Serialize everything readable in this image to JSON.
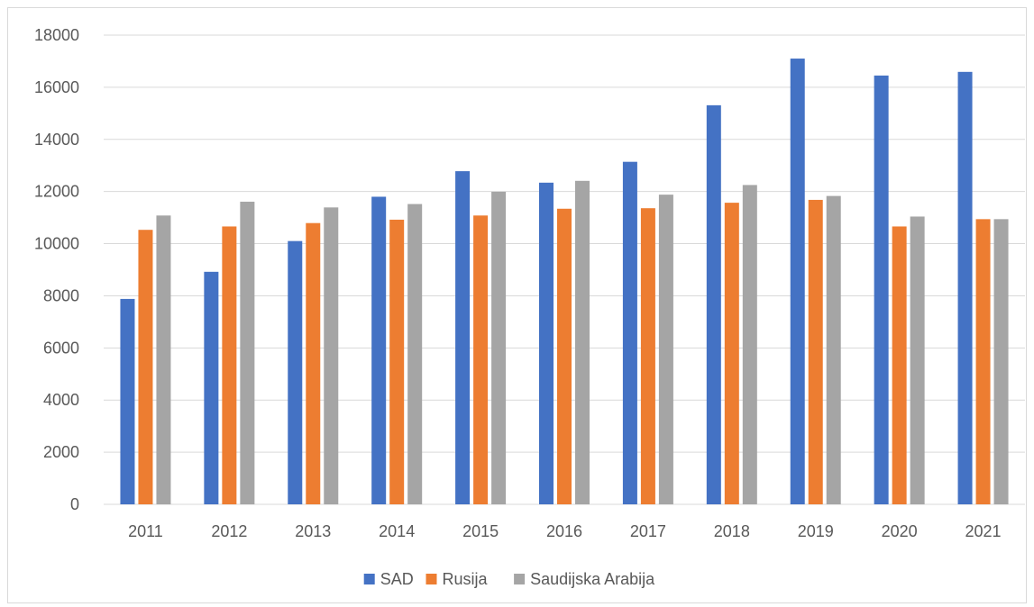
{
  "chart_data": {
    "type": "bar",
    "title": "",
    "xlabel": "",
    "ylabel": "",
    "categories": [
      "2011",
      "2012",
      "2013",
      "2014",
      "2015",
      "2016",
      "2017",
      "2018",
      "2019",
      "2020",
      "2021"
    ],
    "series": [
      {
        "name": "SAD",
        "color": "#4472c4",
        "values": [
          7880,
          8920,
          10100,
          11800,
          12780,
          12340,
          13140,
          15310,
          17100,
          16450,
          16590
        ]
      },
      {
        "name": "Rusija",
        "color": "#ed7d31",
        "values": [
          10530,
          10660,
          10790,
          10920,
          11080,
          11340,
          11360,
          11570,
          11680,
          10660,
          10940
        ]
      },
      {
        "name": "Saudijska Arabija",
        "color": "#a5a5a5",
        "values": [
          11080,
          11610,
          11390,
          11520,
          11990,
          12410,
          11880,
          12250,
          11830,
          11040,
          10940
        ]
      }
    ],
    "ylim": [
      0,
      18000
    ],
    "yticks": [
      0,
      2000,
      4000,
      6000,
      8000,
      10000,
      12000,
      14000,
      16000,
      18000
    ],
    "grid": true,
    "legend_position": "bottom"
  }
}
